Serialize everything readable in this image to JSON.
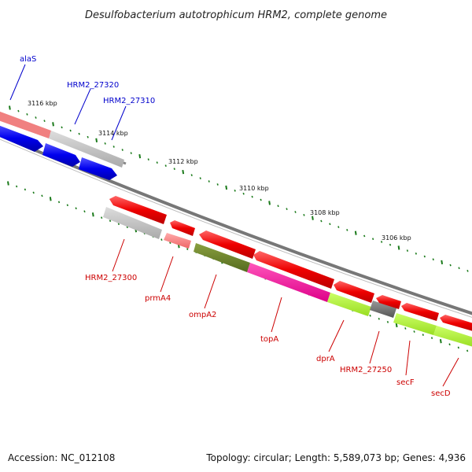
{
  "title": "Desulfobacterium autotrophicum HRM2, complete genome",
  "footer": {
    "accession": "Accession: NC_012108",
    "summary": "Topology: circular; Length: 5,589,073 bp; Genes: 4,936"
  },
  "tick_labels": [
    "3116 kbp",
    "3114 kbp",
    "3112 kbp",
    "3110 kbp",
    "3108 kbp",
    "3106 kbp"
  ],
  "colors": {
    "forward_label": "#0000cc",
    "reverse_label": "#cc0000",
    "backbone": "#888888",
    "tick": "#1a7a1a"
  },
  "forward_genes": [
    {
      "name": "alaS",
      "color": "#0000ee"
    },
    {
      "name": "HRM2_27320",
      "color": "#0000ee"
    },
    {
      "name": "HRM2_27310",
      "color": "#0000ee"
    }
  ],
  "reverse_genes": [
    {
      "name": "HRM2_27300"
    },
    {
      "name": "prmA4"
    },
    {
      "name": "ompA2"
    },
    {
      "name": "topA"
    },
    {
      "name": "dprA"
    },
    {
      "name": "HRM2_27250"
    },
    {
      "name": "secF"
    },
    {
      "name": "secD"
    }
  ]
}
